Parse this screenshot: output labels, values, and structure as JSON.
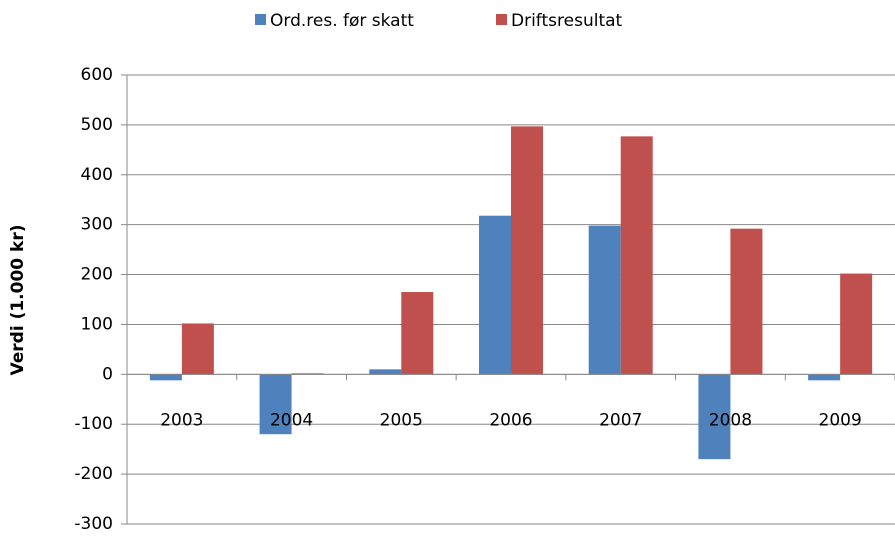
{
  "chart_data": {
    "type": "bar",
    "y_label": "Verdi (1.000 kr)",
    "categories": [
      "2003",
      "2004",
      "2005",
      "2006",
      "2007",
      "2008",
      "2009"
    ],
    "series": [
      {
        "name": "Ord.res. før skatt",
        "color": "#4f81bd",
        "values": [
          -12,
          -120,
          10,
          318,
          298,
          -170,
          -12
        ]
      },
      {
        "name": "Driftsresultat",
        "color": "#c0504d",
        "values": [
          102,
          2,
          165,
          497,
          477,
          292,
          202
        ]
      }
    ],
    "ylim": [
      -300,
      600
    ],
    "yticks": [
      -300,
      -200,
      -100,
      0,
      100,
      200,
      300,
      400,
      500,
      600
    ],
    "grid": true
  }
}
